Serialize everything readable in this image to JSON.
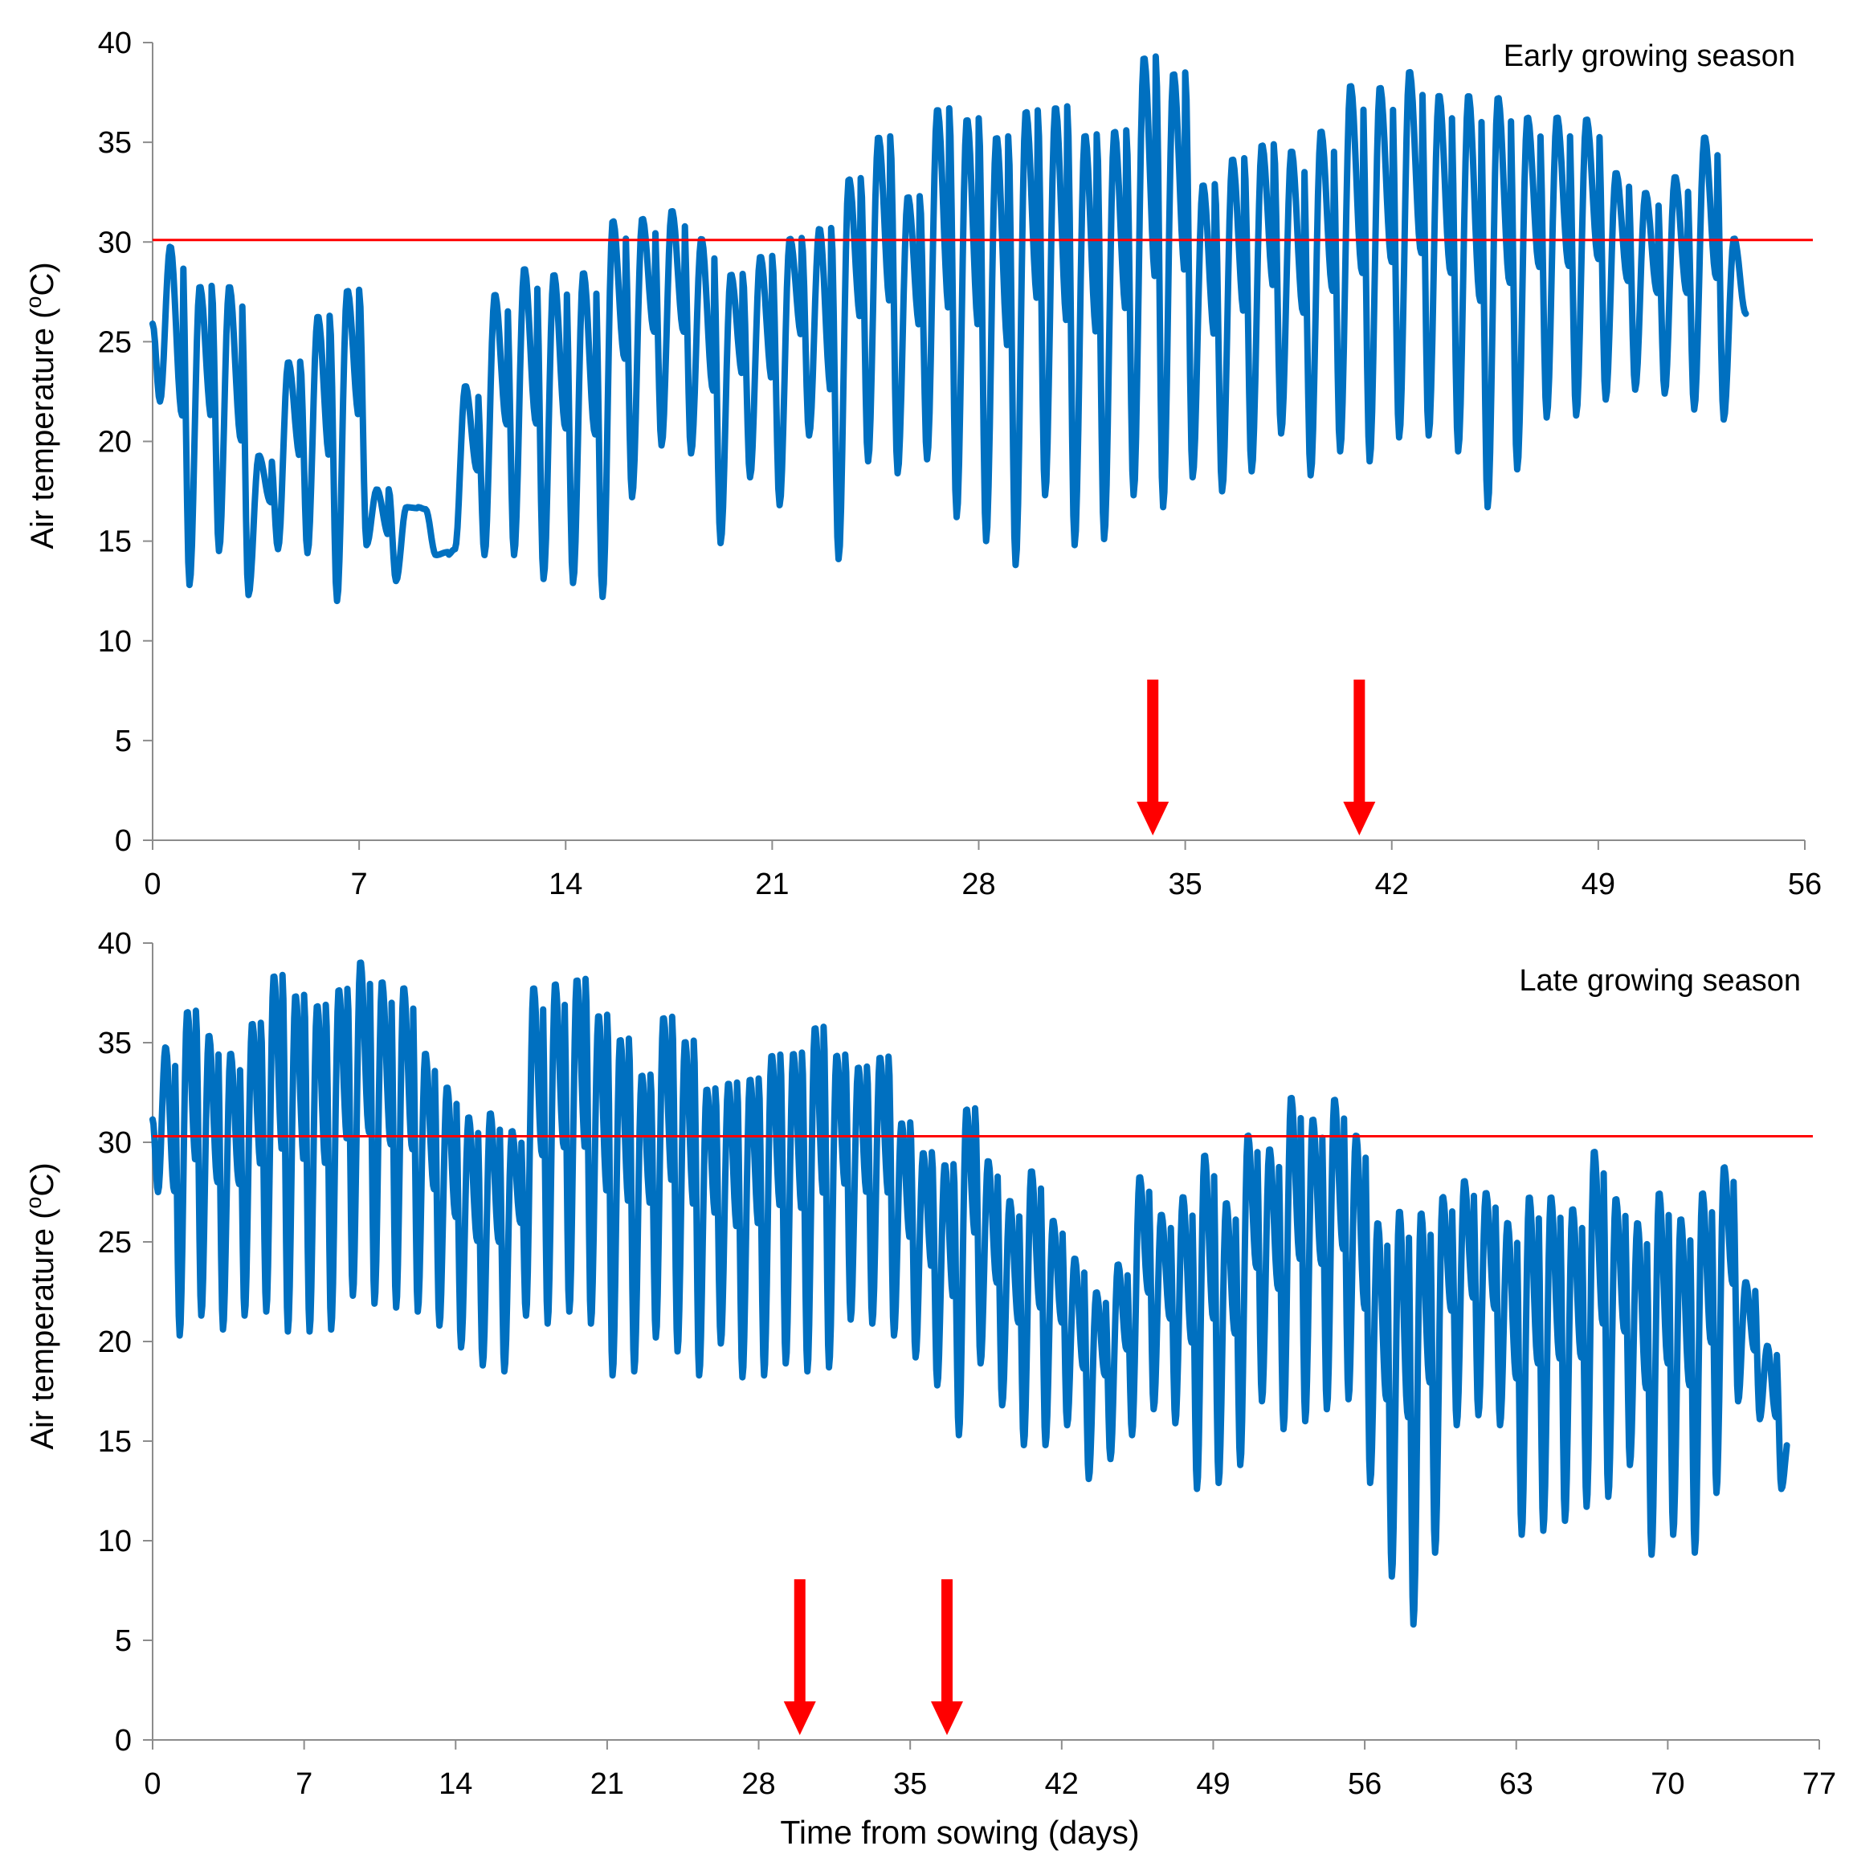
{
  "chart_data": [
    {
      "type": "line",
      "title": "Early growing season",
      "xlabel": "",
      "ylabel": "Air temperature (°C)",
      "ylabel_prefix": "Air temperature (",
      "ylabel_sup": "o",
      "ylabel_suffix": "C)",
      "xlim": [
        0,
        56
      ],
      "ylim": [
        0,
        40
      ],
      "xticks": [
        0,
        7,
        14,
        21,
        28,
        35,
        42,
        49,
        56
      ],
      "yticks": [
        0,
        5,
        10,
        15,
        20,
        25,
        30,
        35,
        40
      ],
      "grid": false,
      "threshold": 30.1,
      "arrows_at_day": [
        33.9,
        40.9
      ],
      "last_day": 54,
      "series": [
        {
          "name": "Air temperature",
          "color": "#0070C0",
          "min": [
            22,
            12.8,
            14.5,
            12.3,
            14.6,
            14.4,
            12,
            14.8,
            13,
            16.6,
            14.6,
            14.3,
            14.3,
            13.1,
            12.9,
            12.2,
            17.2,
            19.8,
            19.4,
            14.9,
            18.2,
            16.8,
            20.3,
            14.1,
            19,
            18.4,
            19.1,
            16.2,
            15,
            13.8,
            17.3,
            14.8,
            15.1,
            17.3,
            16.7,
            18.2,
            17.5,
            18.5,
            20.4,
            18.3,
            19.5,
            19,
            20.2,
            20.3,
            19.5,
            16.7,
            18.6,
            21.2,
            21.3,
            22.1,
            22.6,
            22.4,
            21.6,
            21.1,
            22.6
          ],
          "max": [
            29.8,
            27.8,
            27.8,
            19.3,
            24,
            26.3,
            27.6,
            17.6,
            16.7,
            14.3,
            22.8,
            27.4,
            28.7,
            28.4,
            28.5,
            31.1,
            31.2,
            31.6,
            30.2,
            28.4,
            29.3,
            30.2,
            30.7,
            33.2,
            35.3,
            32.3,
            36.7,
            36.2,
            35.3,
            36.6,
            36.8,
            35.4,
            35.6,
            39.3,
            38.5,
            32.9,
            34.2,
            34.9,
            34.6,
            35.6,
            37.9,
            37.8,
            38.6,
            37.4,
            37.4,
            37.3,
            36.3,
            36.3,
            36.2,
            33.5,
            32.5,
            33.3,
            35.3,
            30.2
          ]
        }
      ]
    },
    {
      "type": "line",
      "title": "Late growing season",
      "xlabel": "Time from sowing (days)",
      "ylabel": "Air temperature (°C)",
      "ylabel_prefix": "Air temperature (",
      "ylabel_sup": "o",
      "ylabel_suffix": "C)",
      "xlim": [
        0,
        77
      ],
      "ylim": [
        0,
        40
      ],
      "xticks": [
        0,
        7,
        14,
        21,
        28,
        35,
        42,
        49,
        56,
        63,
        70,
        77
      ],
      "yticks": [
        0,
        5,
        10,
        15,
        20,
        25,
        30,
        35,
        40
      ],
      "grid": false,
      "threshold": 30.3,
      "arrows_at_day": [
        29.9,
        36.7
      ],
      "last_day": 75.5,
      "series": [
        {
          "name": "Air temperature",
          "color": "#0070C0",
          "min": [
            27.5,
            20.3,
            21.3,
            20.6,
            21.3,
            21.5,
            20.5,
            20.5,
            20.6,
            22.3,
            21.9,
            21.7,
            21.5,
            20.8,
            19.7,
            18.8,
            18.5,
            21.3,
            20.9,
            21.5,
            20.9,
            18.3,
            18.5,
            20.2,
            19.5,
            18.3,
            19.9,
            18.2,
            18.3,
            18.9,
            18.5,
            18.7,
            21.1,
            20.9,
            20.3,
            19.2,
            17.8,
            15.3,
            18.9,
            16.8,
            14.8,
            14.8,
            15.8,
            13.1,
            14.1,
            15.3,
            16.6,
            15.9,
            12.6,
            12.9,
            13.8,
            17,
            15.6,
            16,
            16.6,
            17.1,
            12.9,
            8.2,
            5.8,
            9.4,
            15.8,
            16.3,
            15.8,
            10.3,
            10.5,
            11,
            11.7,
            12.2,
            13.8,
            9.3,
            10.3,
            9.4,
            12.4,
            17,
            16.1,
            12.6
          ],
          "max": [
            34.8,
            36.6,
            35.4,
            34.5,
            36,
            38.4,
            37.4,
            36.9,
            37.7,
            39.1,
            38.1,
            37.8,
            34.5,
            32.8,
            31.3,
            31.5,
            30.6,
            37.8,
            38,
            38.2,
            36.4,
            35.2,
            33.4,
            36.3,
            35.1,
            32.7,
            33,
            33.2,
            34.4,
            34.5,
            35.8,
            34.4,
            33.8,
            34.3,
            31,
            29.5,
            28.9,
            31.7,
            29.1,
            27.1,
            28.6,
            26.1,
            24.2,
            22.5,
            23.9,
            28.3,
            26.4,
            27.3,
            29.4,
            27,
            30.4,
            29.7,
            32.3,
            31.2,
            32.2,
            30.4,
            26,
            26.6,
            26.5,
            27.3,
            28.1,
            27.5,
            26,
            27.3,
            27.3,
            26.7,
            29.6,
            27.2,
            26,
            27.5,
            26.2,
            27.5,
            28.8,
            23,
            19.8,
            15.3
          ]
        }
      ]
    }
  ]
}
